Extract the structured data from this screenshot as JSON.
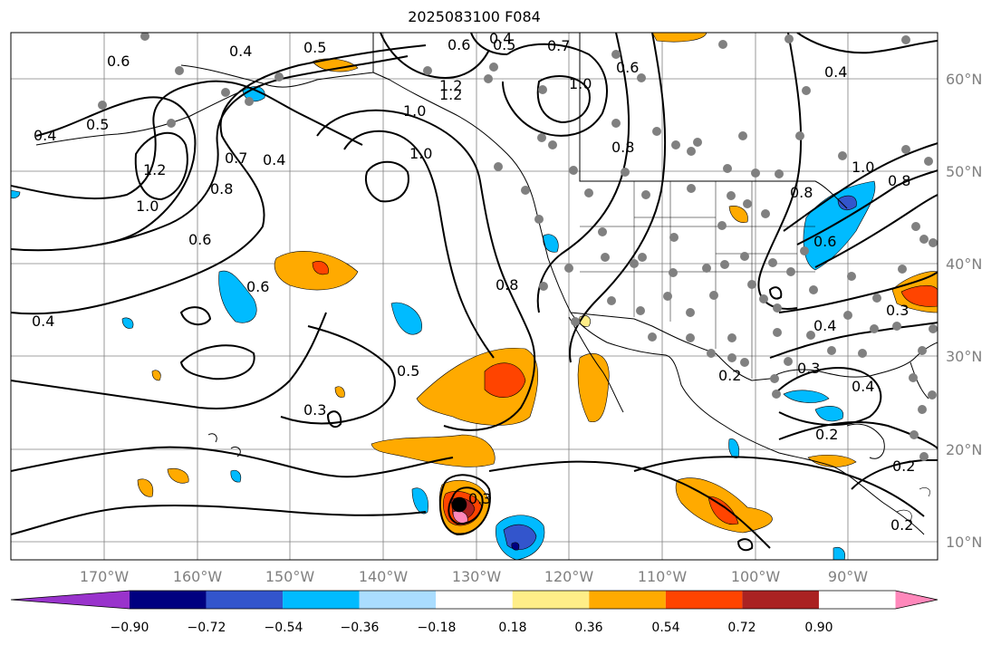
{
  "title": "2025083100 F084",
  "lon_labels": [
    "170°W",
    "160°W",
    "150°W",
    "140°W",
    "130°W",
    "120°W",
    "110°W",
    "100°W",
    "90°W"
  ],
  "lat_labels": [
    "60°N",
    "50°N",
    "40°N",
    "30°N",
    "20°N",
    "10°N"
  ],
  "colorbar": {
    "colors": [
      "#9933cc",
      "#000080",
      "#3355cc",
      "#00bbff",
      "#aaddff",
      "#ffffff",
      "#ffee88",
      "#ffaa00",
      "#ff4400",
      "#aa2222",
      "#ff88bb"
    ],
    "tick_labels": [
      "−0.90",
      "−0.72",
      "−0.54",
      "−0.36",
      "−0.18",
      "0.18",
      "0.36",
      "0.54",
      "0.72",
      "0.90"
    ]
  },
  "contour_labels": [
    "0.4",
    "0.5",
    "0.6",
    "0.6",
    "0.4",
    "0.5",
    "0.7",
    "0.5",
    "1.2",
    "1.0",
    "1.2",
    "1.0",
    "0.8",
    "0.7",
    "0.4",
    "1.0",
    "0.6",
    "0.4",
    "1.0",
    "0.8",
    "0.6",
    "0.8",
    "0.5",
    "0.4",
    "0.8",
    "1.0",
    "0.8",
    "0.6",
    "0.3",
    "0.4",
    "0.3",
    "0.2",
    "0.3",
    "0.4",
    "0.2",
    "0.2",
    "0.2",
    "0.3",
    "1.2",
    "0.6",
    "0.4"
  ],
  "colors": {
    "contour": "#000000",
    "grid": "#808080",
    "station": "#808080"
  }
}
